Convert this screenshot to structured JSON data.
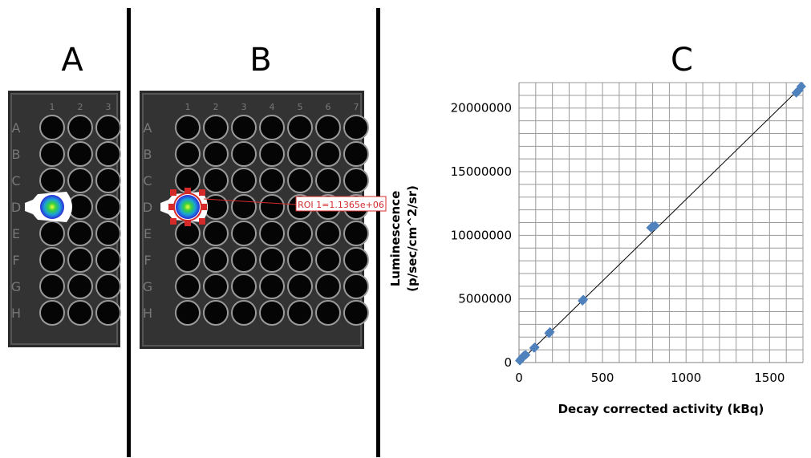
{
  "panels": {
    "a_label": "A",
    "b_label": "B",
    "c_label": "C"
  },
  "plate": {
    "column_numbers": [
      "1",
      "2",
      "3",
      "4",
      "5",
      "6",
      "7"
    ],
    "row_letters": [
      "A",
      "B",
      "C",
      "D",
      "E",
      "F",
      "G",
      "H"
    ],
    "roi_label": "ROI 1=1.1365e+06",
    "roi_color": "#d42a2a",
    "plate_color": "#2a2a2a"
  },
  "chart_data": {
    "type": "scatter",
    "title": "C",
    "xlabel": "Decay corrected activity (kBq)",
    "ylabel_line1": "Luminescence",
    "ylabel_line2": "(p/sec/cm^2/sr)",
    "xlim": [
      0,
      1700
    ],
    "ylim": [
      0,
      22000000
    ],
    "x_ticks": [
      0,
      500,
      1000,
      1500
    ],
    "y_ticks": [
      0,
      5000000,
      10000000,
      15000000,
      20000000
    ],
    "grid": true,
    "marker_color": "#4f81bd",
    "series": [
      {
        "points": [
          [
            5,
            150000
          ],
          [
            10,
            250000
          ],
          [
            20,
            400000
          ],
          [
            30,
            550000
          ],
          [
            40,
            600000
          ],
          [
            90,
            1150000
          ],
          [
            95,
            1200000
          ],
          [
            180,
            2300000
          ],
          [
            185,
            2400000
          ],
          [
            380,
            4850000
          ],
          [
            385,
            4950000
          ],
          [
            790,
            10600000
          ],
          [
            800,
            10700000
          ],
          [
            815,
            10750000
          ],
          [
            1660,
            21200000
          ],
          [
            1675,
            21400000
          ],
          [
            1690,
            21700000
          ]
        ]
      }
    ],
    "trendline": {
      "x": [
        0,
        1700
      ],
      "y": [
        0,
        21800000
      ]
    }
  }
}
